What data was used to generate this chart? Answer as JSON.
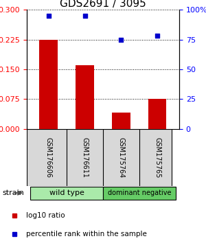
{
  "title": "GDS2691 / 3095",
  "samples": [
    "GSM176606",
    "GSM176611",
    "GSM175764",
    "GSM175765"
  ],
  "log10_ratio": [
    0.225,
    0.16,
    0.04,
    0.075
  ],
  "percentile_rank": [
    95,
    95,
    75,
    78
  ],
  "left_yticks": [
    0,
    0.075,
    0.15,
    0.225,
    0.3
  ],
  "left_ylim": [
    0,
    0.3
  ],
  "right_yticks": [
    0,
    25,
    50,
    75,
    100
  ],
  "right_ylim": [
    0,
    100
  ],
  "bar_color": "#cc0000",
  "scatter_color": "#0000cc",
  "strain_groups": [
    {
      "label": "wild type",
      "indices": [
        0,
        1
      ],
      "color": "#aaeaaa"
    },
    {
      "label": "dominant negative",
      "indices": [
        2,
        3
      ],
      "color": "#66cc66"
    }
  ],
  "strain_label": "strain",
  "legend_items": [
    {
      "label": "log10 ratio",
      "color": "#cc0000"
    },
    {
      "label": "percentile rank within the sample",
      "color": "#0000cc"
    }
  ],
  "grid_color": "#000000",
  "bg_color": "#ffffff",
  "sample_box_color": "#d8d8d8",
  "title_fontsize": 11,
  "tick_label_fontsize": 8,
  "bar_width": 0.5
}
